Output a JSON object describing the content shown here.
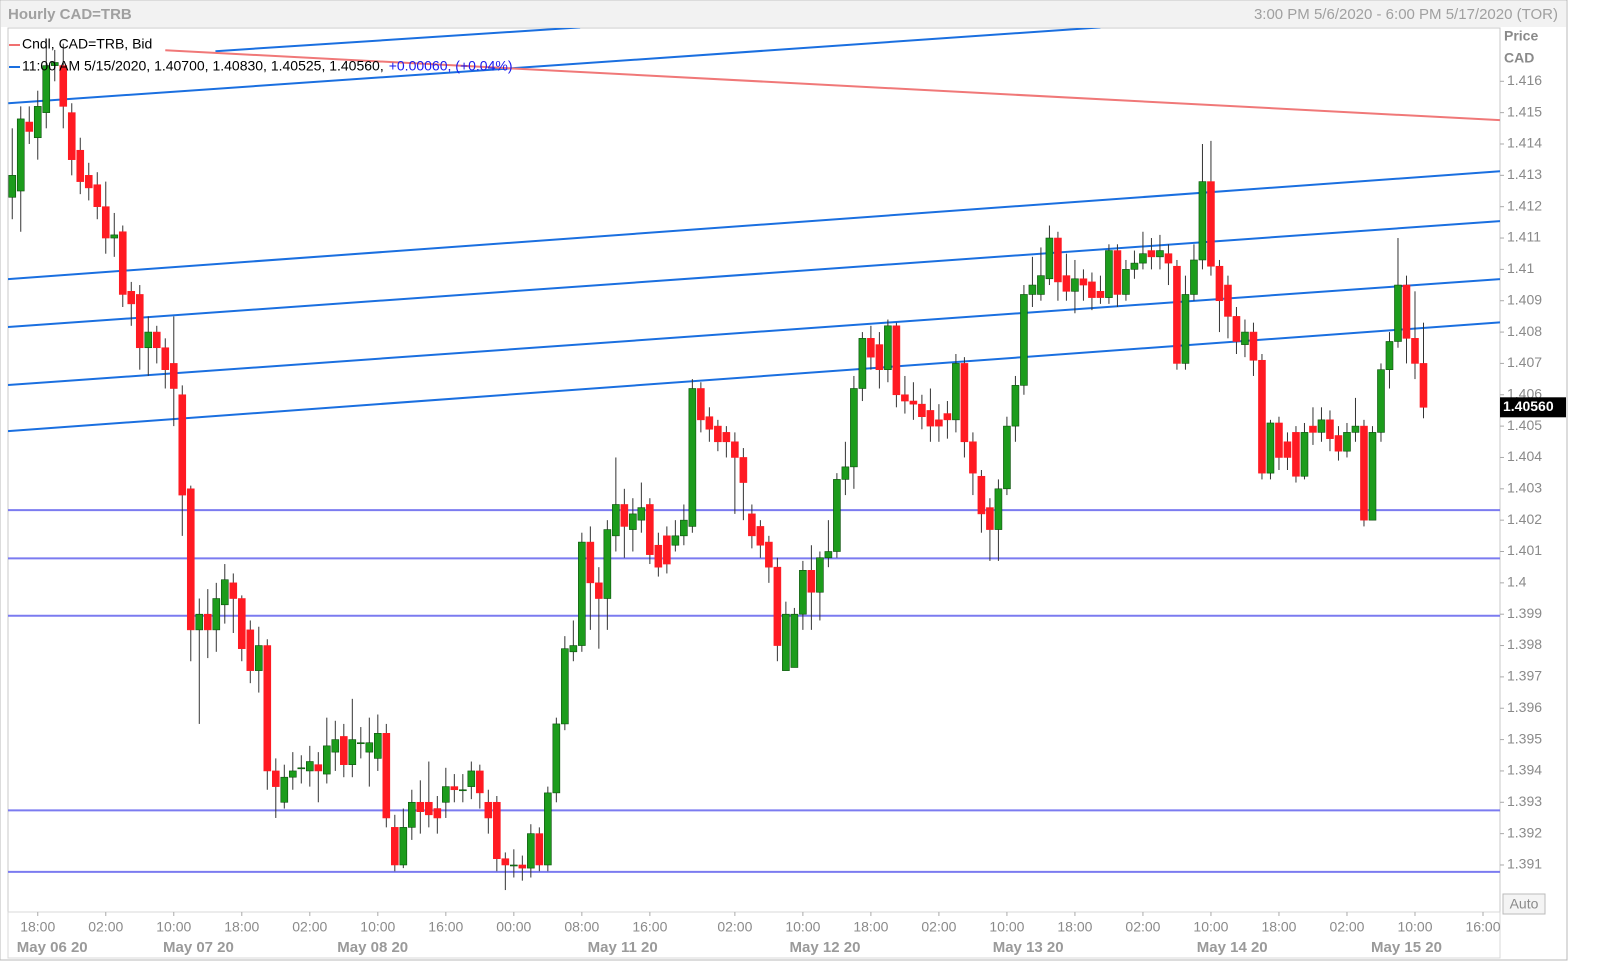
{
  "chart_data": {
    "type": "candlestick",
    "title": "Hourly CAD=TRB",
    "subtitle": "3:00 PM 5/6/2020 - 6:00 PM 5/17/2020 (TOR)",
    "y_axis_label": "Price",
    "y_axis_unit": "CAD",
    "button": "Auto",
    "legend": {
      "name": "Cndl, CAD=TRB, Bid",
      "readout": "11:00 AM 5/15/2020, 1.40700, 1.40830, 1.40525, 1.40560,",
      "change": "+0.00060, (+0.04%)",
      "change_color": "#1a1aee",
      "icon_colors": [
        "#f07070",
        "#1a6fe0"
      ]
    },
    "up_color": "#1c9c1c",
    "down_color": "#ff1a22",
    "xlim": [
      -0.5,
      175
    ],
    "ylim": [
      1.3895,
      1.4177
    ],
    "yticks": [
      1.391,
      1.392,
      1.393,
      1.394,
      1.395,
      1.396,
      1.397,
      1.398,
      1.399,
      1.4,
      1.401,
      1.402,
      1.403,
      1.404,
      1.405,
      1.406,
      1.407,
      1.408,
      1.409,
      1.41,
      1.411,
      1.412,
      1.413,
      1.414,
      1.415,
      1.416
    ],
    "xticks": [
      {
        "value": 3,
        "label": "18:00"
      },
      {
        "value": 11,
        "label": "02:00"
      },
      {
        "value": 19,
        "label": "10:00"
      },
      {
        "value": 27,
        "label": "18:00"
      },
      {
        "value": 35,
        "label": "02:00"
      },
      {
        "value": 43,
        "label": "10:00"
      },
      {
        "value": 51,
        "label": "16:00"
      },
      {
        "value": 59,
        "label": "00:00"
      },
      {
        "value": 67,
        "label": "08:00"
      },
      {
        "value": 75,
        "label": "16:00"
      },
      {
        "value": 85,
        "label": "02:00"
      },
      {
        "value": 93,
        "label": "10:00"
      },
      {
        "value": 101,
        "label": "18:00"
      },
      {
        "value": 109,
        "label": "02:00"
      },
      {
        "value": 117,
        "label": "10:00"
      },
      {
        "value": 125,
        "label": "18:00"
      },
      {
        "value": 133,
        "label": "02:00"
      },
      {
        "value": 141,
        "label": "10:00"
      },
      {
        "value": 149,
        "label": "18:00"
      },
      {
        "value": 157,
        "label": "02:00"
      },
      {
        "value": 165,
        "label": "10:00"
      },
      {
        "value": 173,
        "label": "16:00"
      }
    ],
    "xticks_dates": [
      {
        "value": 4.7,
        "label": "May 06 20"
      },
      {
        "value": 21.9,
        "label": "May 07 20"
      },
      {
        "value": 42.4,
        "label": "May 08 20"
      },
      {
        "value": 71.8,
        "label": "May 11 20"
      },
      {
        "value": 95.6,
        "label": "May 12 20"
      },
      {
        "value": 119.5,
        "label": "May 13 20"
      },
      {
        "value": 143.5,
        "label": "May 14 20"
      },
      {
        "value": 164,
        "label": "May 15 20"
      }
    ],
    "last_price": {
      "value": 1.4056,
      "label": "1.40560"
    },
    "ohlc": [
      [
        1.4123,
        1.4145,
        1.4116,
        1.413
      ],
      [
        1.4125,
        1.4152,
        1.4112,
        1.4148
      ],
      [
        1.4147,
        1.4152,
        1.414,
        1.4144
      ],
      [
        1.4142,
        1.4157,
        1.4135,
        1.4152
      ],
      [
        1.415,
        1.4172,
        1.4145,
        1.4165
      ],
      [
        1.4165,
        1.417,
        1.416,
        1.4166
      ],
      [
        1.4165,
        1.4172,
        1.4145,
        1.4152
      ],
      [
        1.415,
        1.4153,
        1.413,
        1.4135
      ],
      [
        1.4138,
        1.4142,
        1.4124,
        1.4128
      ],
      [
        1.413,
        1.4134,
        1.4122,
        1.4126
      ],
      [
        1.4127,
        1.4131,
        1.4116,
        1.412
      ],
      [
        1.412,
        1.4128,
        1.4105,
        1.411
      ],
      [
        1.411,
        1.4118,
        1.4104,
        1.4111
      ],
      [
        1.4112,
        1.4114,
        1.4088,
        1.4092
      ],
      [
        1.4093,
        1.4096,
        1.4082,
        1.4089
      ],
      [
        1.4092,
        1.4095,
        1.4068,
        1.4075
      ],
      [
        1.4075,
        1.4085,
        1.4066,
        1.408
      ],
      [
        1.408,
        1.4082,
        1.407,
        1.4075
      ],
      [
        1.4075,
        1.4078,
        1.4062,
        1.4068
      ],
      [
        1.407,
        1.4085,
        1.405,
        1.4062
      ],
      [
        1.406,
        1.4063,
        1.4015,
        1.4028
      ],
      [
        1.403,
        1.4031,
        1.3975,
        1.3985
      ],
      [
        1.3985,
        1.3995,
        1.3955,
        1.399
      ],
      [
        1.399,
        1.3998,
        1.3976,
        1.3985
      ],
      [
        1.3985,
        1.4,
        1.3978,
        1.3995
      ],
      [
        1.3993,
        1.4006,
        1.3987,
        1.4001
      ],
      [
        1.4,
        1.4003,
        1.3984,
        1.3995
      ],
      [
        1.3995,
        1.3996,
        1.3975,
        1.3979
      ],
      [
        1.3985,
        1.3988,
        1.3968,
        1.3972
      ],
      [
        1.3972,
        1.3986,
        1.3965,
        1.398
      ],
      [
        1.398,
        1.3982,
        1.3934,
        1.394
      ],
      [
        1.394,
        1.3944,
        1.3925,
        1.3935
      ],
      [
        1.393,
        1.3942,
        1.3928,
        1.3938
      ],
      [
        1.3938,
        1.3946,
        1.3934,
        1.394
      ],
      [
        1.3941,
        1.3945,
        1.3936,
        1.3941
      ],
      [
        1.394,
        1.3948,
        1.3935,
        1.3943
      ],
      [
        1.3942,
        1.3946,
        1.393,
        1.394
      ],
      [
        1.3939,
        1.3957,
        1.3936,
        1.3948
      ],
      [
        1.3946,
        1.3956,
        1.394,
        1.395
      ],
      [
        1.3951,
        1.3955,
        1.3938,
        1.3942
      ],
      [
        1.3942,
        1.3963,
        1.3938,
        1.395
      ],
      [
        1.3949,
        1.3954,
        1.3944,
        1.3949
      ],
      [
        1.3946,
        1.3957,
        1.3935,
        1.3949
      ],
      [
        1.3944,
        1.3958,
        1.394,
        1.3952
      ],
      [
        1.3952,
        1.3955,
        1.3922,
        1.3925
      ],
      [
        1.3922,
        1.3926,
        1.3908,
        1.391
      ],
      [
        1.391,
        1.3928,
        1.3909,
        1.3922
      ],
      [
        1.3922,
        1.3934,
        1.3918,
        1.393
      ],
      [
        1.393,
        1.3937,
        1.392,
        1.3927
      ],
      [
        1.393,
        1.3943,
        1.3922,
        1.3926
      ],
      [
        1.3928,
        1.3932,
        1.392,
        1.3925
      ],
      [
        1.393,
        1.3941,
        1.3925,
        1.3935
      ],
      [
        1.3935,
        1.3939,
        1.393,
        1.3934
      ],
      [
        1.3934,
        1.3939,
        1.393,
        1.3934
      ],
      [
        1.3935,
        1.3943,
        1.3931,
        1.394
      ],
      [
        1.394,
        1.3942,
        1.3928,
        1.3933
      ],
      [
        1.393,
        1.3934,
        1.392,
        1.3925
      ],
      [
        1.393,
        1.3932,
        1.3908,
        1.3912
      ],
      [
        1.3912,
        1.3914,
        1.3902,
        1.391
      ],
      [
        1.391,
        1.3915,
        1.3906,
        1.391
      ],
      [
        1.391,
        1.3913,
        1.3905,
        1.3909
      ],
      [
        1.3909,
        1.3923,
        1.3906,
        1.392
      ],
      [
        1.392,
        1.3922,
        1.3908,
        1.391
      ],
      [
        1.391,
        1.3935,
        1.3908,
        1.3933
      ],
      [
        1.3933,
        1.3957,
        1.393,
        1.3955
      ],
      [
        1.3955,
        1.3983,
        1.3953,
        1.3979
      ],
      [
        1.3978,
        1.3988,
        1.3975,
        1.398
      ],
      [
        1.398,
        1.4016,
        1.3978,
        1.4013
      ],
      [
        1.4013,
        1.4018,
        1.3985,
        1.4
      ],
      [
        1.4,
        1.4005,
        1.3979,
        1.3995
      ],
      [
        1.3995,
        1.402,
        1.3985,
        1.4017
      ],
      [
        1.4015,
        1.404,
        1.401,
        1.4025
      ],
      [
        1.4025,
        1.403,
        1.4008,
        1.4018
      ],
      [
        1.4017,
        1.4027,
        1.401,
        1.4022
      ],
      [
        1.402,
        1.4032,
        1.4016,
        1.4024
      ],
      [
        1.4025,
        1.4027,
        1.4006,
        1.4009
      ],
      [
        1.4012,
        1.4016,
        1.4002,
        1.4005
      ],
      [
        1.4015,
        1.4018,
        1.4003,
        1.4006
      ],
      [
        1.4012,
        1.402,
        1.401,
        1.4015
      ],
      [
        1.4015,
        1.4025,
        1.4012,
        1.402
      ],
      [
        1.4018,
        1.4065,
        1.4016,
        1.4062
      ],
      [
        1.4062,
        1.4064,
        1.4048,
        1.4052
      ],
      [
        1.4053,
        1.4056,
        1.4045,
        1.4049
      ],
      [
        1.405,
        1.4052,
        1.4042,
        1.4045
      ],
      [
        1.4048,
        1.405,
        1.404,
        1.4045
      ],
      [
        1.4045,
        1.4048,
        1.4022,
        1.404
      ],
      [
        1.404,
        1.4043,
        1.402,
        1.4032
      ],
      [
        1.4022,
        1.4025,
        1.4011,
        1.4015
      ],
      [
        1.4018,
        1.402,
        1.4008,
        1.4012
      ],
      [
        1.4013,
        1.4015,
        1.4,
        1.4005
      ],
      [
        1.4005,
        1.4008,
        1.3975,
        1.398
      ],
      [
        1.3972,
        1.3994,
        1.3972,
        1.399
      ],
      [
        1.3973,
        1.3992,
        1.3973,
        1.399
      ],
      [
        1.399,
        1.4007,
        1.3985,
        1.4004
      ],
      [
        1.4004,
        1.4012,
        1.3985,
        1.3997
      ],
      [
        1.3997,
        1.401,
        1.3988,
        1.4008
      ],
      [
        1.4008,
        1.402,
        1.4005,
        1.401
      ],
      [
        1.401,
        1.4035,
        1.4008,
        1.4033
      ],
      [
        1.4033,
        1.4045,
        1.4028,
        1.4037
      ],
      [
        1.4037,
        1.4066,
        1.403,
        1.4062
      ],
      [
        1.4062,
        1.408,
        1.4058,
        1.4078
      ],
      [
        1.4078,
        1.4082,
        1.4068,
        1.4072
      ],
      [
        1.4076,
        1.408,
        1.4062,
        1.4068
      ],
      [
        1.4068,
        1.4084,
        1.4064,
        1.4082
      ],
      [
        1.4082,
        1.4083,
        1.4056,
        1.406
      ],
      [
        1.406,
        1.4066,
        1.4054,
        1.4058
      ],
      [
        1.4058,
        1.4064,
        1.4052,
        1.4057
      ],
      [
        1.4057,
        1.406,
        1.4049,
        1.4053
      ],
      [
        1.4055,
        1.4062,
        1.4045,
        1.405
      ],
      [
        1.4052,
        1.4057,
        1.4045,
        1.405
      ],
      [
        1.4054,
        1.4058,
        1.4046,
        1.4052
      ],
      [
        1.4052,
        1.4073,
        1.4048,
        1.407
      ],
      [
        1.407,
        1.4072,
        1.404,
        1.4045
      ],
      [
        1.4045,
        1.4048,
        1.4028,
        1.4035
      ],
      [
        1.4034,
        1.4036,
        1.4016,
        1.4022
      ],
      [
        1.4024,
        1.4027,
        1.4007,
        1.4017
      ],
      [
        1.4017,
        1.4033,
        1.4007,
        1.403
      ],
      [
        1.403,
        1.4053,
        1.4028,
        1.405
      ],
      [
        1.405,
        1.4066,
        1.4045,
        1.4063
      ],
      [
        1.4063,
        1.4095,
        1.406,
        1.4092
      ],
      [
        1.4092,
        1.4104,
        1.4088,
        1.4095
      ],
      [
        1.4092,
        1.4107,
        1.409,
        1.4098
      ],
      [
        1.4097,
        1.4114,
        1.4095,
        1.411
      ],
      [
        1.411,
        1.4112,
        1.409,
        1.4096
      ],
      [
        1.4098,
        1.4105,
        1.409,
        1.4093
      ],
      [
        1.4093,
        1.4103,
        1.4086,
        1.4097
      ],
      [
        1.4097,
        1.41,
        1.409,
        1.4095
      ],
      [
        1.4096,
        1.4099,
        1.4087,
        1.4091
      ],
      [
        1.4093,
        1.4098,
        1.4089,
        1.4091
      ],
      [
        1.4091,
        1.4108,
        1.4089,
        1.4106
      ],
      [
        1.4106,
        1.4108,
        1.4088,
        1.4092
      ],
      [
        1.4092,
        1.4103,
        1.409,
        1.41
      ],
      [
        1.41,
        1.4106,
        1.4097,
        1.4102
      ],
      [
        1.4102,
        1.4112,
        1.41,
        1.4105
      ],
      [
        1.4106,
        1.411,
        1.41,
        1.4104
      ],
      [
        1.4104,
        1.4111,
        1.41,
        1.4106
      ],
      [
        1.4105,
        1.4108,
        1.4095,
        1.4102
      ],
      [
        1.4101,
        1.4103,
        1.4068,
        1.407
      ],
      [
        1.407,
        1.4098,
        1.4068,
        1.4092
      ],
      [
        1.4092,
        1.4108,
        1.409,
        1.4103
      ],
      [
        1.4103,
        1.414,
        1.41,
        1.4128
      ],
      [
        1.4128,
        1.4141,
        1.4098,
        1.4101
      ],
      [
        1.4101,
        1.4103,
        1.408,
        1.409
      ],
      [
        1.4095,
        1.4098,
        1.4078,
        1.4085
      ],
      [
        1.4085,
        1.4088,
        1.4073,
        1.4077
      ],
      [
        1.4076,
        1.4084,
        1.4072,
        1.408
      ],
      [
        1.408,
        1.4083,
        1.4066,
        1.4071
      ],
      [
        1.4071,
        1.4073,
        1.4033,
        1.4035
      ],
      [
        1.4035,
        1.4052,
        1.4033,
        1.4051
      ],
      [
        1.4051,
        1.4053,
        1.4036,
        1.404
      ],
      [
        1.4045,
        1.4048,
        1.4036,
        1.404
      ],
      [
        1.4048,
        1.405,
        1.4032,
        1.4034
      ],
      [
        1.4034,
        1.4051,
        1.4033,
        1.4048
      ],
      [
        1.405,
        1.4056,
        1.4044,
        1.4048
      ],
      [
        1.4048,
        1.4056,
        1.4045,
        1.4052
      ],
      [
        1.4052,
        1.4055,
        1.4042,
        1.4046
      ],
      [
        1.4047,
        1.405,
        1.4039,
        1.4042
      ],
      [
        1.4042,
        1.4051,
        1.404,
        1.4048
      ],
      [
        1.4048,
        1.4059,
        1.4045,
        1.405
      ],
      [
        1.405,
        1.4052,
        1.4018,
        1.402
      ],
      [
        1.402,
        1.405,
        1.402,
        1.4048
      ],
      [
        1.4048,
        1.407,
        1.4045,
        1.4068
      ],
      [
        1.4068,
        1.408,
        1.4062,
        1.4077
      ],
      [
        1.4077,
        1.411,
        1.4075,
        1.4095
      ],
      [
        1.4095,
        1.4098,
        1.407,
        1.4078
      ],
      [
        1.4078,
        1.4093,
        1.4065,
        1.407
      ],
      [
        1.407,
        1.4083,
        1.40525,
        1.4056
      ]
    ],
    "trend_lines": [
      {
        "color": "#1a6fe0",
        "x": [
          -0.47,
          128
        ],
        "y": [
          1.4153,
          1.41772
        ]
      },
      {
        "color": "#1a6fe0",
        "x": [
          23.9,
          66.8
        ],
        "y": [
          1.41696,
          1.41772
        ]
      },
      {
        "color": "#f07878",
        "x": [
          18,
          175
        ],
        "y": [
          1.41699,
          1.41476
        ]
      },
      {
        "color": "#1a6fe0",
        "x": [
          -0.5,
          175
        ],
        "y": [
          1.40969,
          1.41313
        ]
      },
      {
        "color": "#1a6fe0",
        "x": [
          -0.5,
          175
        ],
        "y": [
          1.40816,
          1.41154
        ]
      },
      {
        "color": "#1a6fe0",
        "x": [
          -0.5,
          175
        ],
        "y": [
          1.40631,
          1.40969
        ]
      },
      {
        "color": "#1a6fe0",
        "x": [
          -0.5,
          175
        ],
        "y": [
          1.40484,
          1.40831
        ]
      }
    ],
    "horizontal_lines": {
      "color": "#7b7bf0",
      "values": [
        1.40232,
        1.40078,
        1.39895,
        1.39274,
        1.39078
      ]
    }
  }
}
